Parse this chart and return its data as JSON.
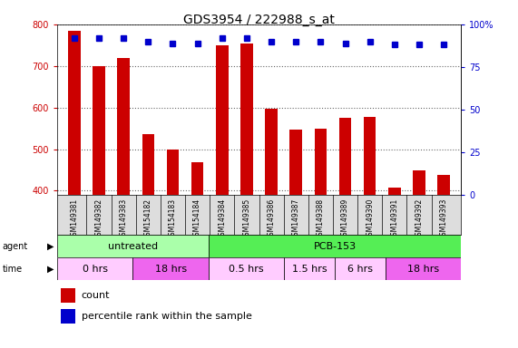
{
  "title": "GDS3954 / 222988_s_at",
  "samples": [
    "GSM149381",
    "GSM149382",
    "GSM149383",
    "GSM154182",
    "GSM154183",
    "GSM154184",
    "GSM149384",
    "GSM149385",
    "GSM149386",
    "GSM149387",
    "GSM149388",
    "GSM149389",
    "GSM149390",
    "GSM149391",
    "GSM149392",
    "GSM149393"
  ],
  "counts": [
    785,
    700,
    720,
    535,
    500,
    468,
    750,
    755,
    598,
    548,
    550,
    575,
    578,
    407,
    450,
    438
  ],
  "percentile_values": [
    92,
    92,
    92,
    90,
    89,
    89,
    92,
    92,
    90,
    90,
    90,
    89,
    90,
    88,
    88,
    88
  ],
  "ylim_left": [
    390,
    800
  ],
  "ylim_right": [
    0,
    100
  ],
  "yticks_left": [
    400,
    500,
    600,
    700,
    800
  ],
  "yticks_right": [
    0,
    25,
    50,
    75,
    100
  ],
  "bar_color": "#cc0000",
  "dot_color": "#0000cc",
  "bg_color": "#ffffff",
  "left_tick_color": "#cc0000",
  "right_tick_color": "#0000cc",
  "title_fontsize": 10,
  "tick_fontsize": 7,
  "label_fontsize": 7,
  "agent_groups": [
    {
      "label": "untreated",
      "start": 0,
      "end": 6,
      "color": "#aaffaa"
    },
    {
      "label": "PCB-153",
      "start": 6,
      "end": 16,
      "color": "#55ee55"
    }
  ],
  "time_groups": [
    {
      "label": "0 hrs",
      "start": 0,
      "end": 3,
      "color": "#ffccff"
    },
    {
      "label": "18 hrs",
      "start": 3,
      "end": 6,
      "color": "#ee66ee"
    },
    {
      "label": "0.5 hrs",
      "start": 6,
      "end": 9,
      "color": "#ffccff"
    },
    {
      "label": "1.5 hrs",
      "start": 9,
      "end": 11,
      "color": "#ffccff"
    },
    {
      "label": "6 hrs",
      "start": 11,
      "end": 13,
      "color": "#ffccff"
    },
    {
      "label": "18 hrs",
      "start": 13,
      "end": 16,
      "color": "#ee66ee"
    }
  ]
}
